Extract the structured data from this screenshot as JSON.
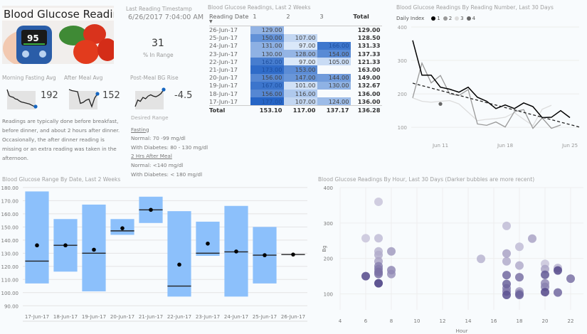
{
  "header": {
    "title": "Blood Glucose Readings",
    "last_reading_label": "Last Reading Timestamp",
    "last_reading_value": "6/26/2017 7:04:00 AM",
    "in_range_value": "31",
    "in_range_label": "% In Range"
  },
  "kpis": [
    {
      "label": "Morning Fasting Avg",
      "value": "192",
      "trend": [
        360,
        300,
        290,
        285,
        270,
        265,
        250,
        240,
        235,
        230,
        225,
        220,
        210,
        200,
        195
      ]
    },
    {
      "label": "After Meal Avg",
      "value": "152",
      "trend": [
        250,
        240,
        235,
        230,
        120,
        130,
        150,
        160,
        90,
        170,
        210
      ]
    },
    {
      "label": "Post-Meal BG Rise",
      "value": "-4.5",
      "trend": [
        -80,
        -30,
        -40,
        -10,
        -20,
        0,
        10,
        0,
        -5,
        5,
        20,
        50
      ]
    }
  ],
  "notes": {
    "description": [
      "Readings are typically done before breakfast,",
      "before dinner, and about 2 hours after dinner.",
      "Occasionally, the after dinner reading is",
      "missing or an extra reading was taken in the",
      "afternoon."
    ],
    "desired_range_title": "Desired Range",
    "fasting_label": "Fasting",
    "fasting_normal": "Normal: 70 -99 mg/dl",
    "fasting_diabetes": "With Diabetes: 80 - 130 mg/dl",
    "after_meal_label": "2 Hrs After Meal",
    "after_meal_normal": "Normal: <140 mg/dl",
    "after_meal_diabetes": "With Diabetes: < 180 mg/dl"
  },
  "matrix": {
    "title": "Blood Glucose Readings, Last 2 Weeks",
    "columns": [
      "Reading Date",
      "1",
      "2",
      "3",
      "Total"
    ],
    "rows": [
      {
        "date": "26-Jun-17",
        "v": [
          "129.00",
          "",
          ""
        ],
        "total": "129.00"
      },
      {
        "date": "25-Jun-17",
        "v": [
          "150.00",
          "107.00",
          ""
        ],
        "total": "128.50"
      },
      {
        "date": "24-Jun-17",
        "v": [
          "131.00",
          "97.00",
          "166.00"
        ],
        "total": "131.33"
      },
      {
        "date": "23-Jun-17",
        "v": [
          "130.00",
          "128.00",
          "154.00"
        ],
        "total": "137.33"
      },
      {
        "date": "22-Jun-17",
        "v": [
          "162.00",
          "97.00",
          "105.00"
        ],
        "total": "121.33"
      },
      {
        "date": "21-Jun-17",
        "v": [
          "173.00",
          "153.00",
          ""
        ],
        "total": "163.00"
      },
      {
        "date": "20-Jun-17",
        "v": [
          "156.00",
          "147.00",
          "144.00"
        ],
        "total": "149.00"
      },
      {
        "date": "19-Jun-17",
        "v": [
          "167.00",
          "101.00",
          "130.00"
        ],
        "total": "132.67"
      },
      {
        "date": "18-Jun-17",
        "v": [
          "156.00",
          "116.00",
          ""
        ],
        "total": "136.00"
      },
      {
        "date": "17-Jun-17",
        "v": [
          "177.00",
          "107.00",
          "124.00"
        ],
        "total": "136.00"
      }
    ],
    "total_row": {
      "label": "Total",
      "v": [
        "153.10",
        "117.00",
        "137.17"
      ],
      "total": "136.28"
    }
  },
  "chart_data": [
    {
      "type": "line",
      "title": "Blood Glucose Readings By Reading Number, Last 30 Days",
      "legend_title": "Daily Index",
      "legend_position": "top-left",
      "xlabel": "",
      "ylabel": "",
      "x_ticks": [
        "Jun 11",
        "Jun 18",
        "Jun 25"
      ],
      "y_ticks": [
        100,
        200,
        300,
        400
      ],
      "ylim": [
        60,
        400
      ],
      "x_days": [
        8,
        9,
        10,
        11,
        12,
        13,
        14,
        15,
        16,
        17,
        18,
        19,
        20,
        21,
        22,
        23,
        24,
        25,
        26
      ],
      "series": [
        {
          "name": "1",
          "color": "#000000",
          "values": [
            360,
            256,
            256,
            220,
            214,
            205,
            220,
            190,
            178,
            156,
            167,
            156,
            173,
            162,
            129,
            130,
            150,
            129,
            null
          ]
        },
        {
          "name": "2",
          "color": "#999999",
          "values": [
            188,
            292,
            233,
            255,
            200,
            195,
            213,
            110,
            106,
            116,
            101,
            147,
            153,
            97,
            128,
            97,
            107,
            null,
            null
          ]
        },
        {
          "name": "3",
          "color": "#dddddd",
          "values": [
            188,
            178,
            175,
            178,
            180,
            170,
            145,
            120,
            124,
            126,
            130,
            144,
            124,
            105,
            154,
            166,
            null,
            null,
            null
          ]
        },
        {
          "name": "4",
          "color": "#666666",
          "values": [
            null,
            null,
            null,
            170,
            null,
            null,
            null,
            null,
            null,
            null,
            null,
            null,
            null,
            null,
            null,
            null,
            null,
            null,
            null
          ]
        }
      ],
      "trendline": {
        "start": 232,
        "end": 101,
        "style": "dashed"
      }
    },
    {
      "type": "bar",
      "subtype": "range-box",
      "title": "Blood Glucose Range By Date, Last 2 Weeks",
      "categories": [
        "17-Jun-17",
        "18-Jun-17",
        "19-Jun-17",
        "20-Jun-17",
        "21-Jun-17",
        "22-Jun-17",
        "23-Jun-17",
        "24-Jun-17",
        "25-Jun-17",
        "26-Jun-17"
      ],
      "min": [
        107,
        116,
        101,
        144,
        153,
        97,
        128,
        97,
        107,
        129
      ],
      "max": [
        177,
        156,
        167,
        156,
        173,
        162,
        154,
        166,
        150,
        129
      ],
      "median": [
        124,
        136,
        130,
        147,
        163,
        105,
        130,
        131,
        128.5,
        129
      ],
      "mean": [
        136,
        136,
        132.67,
        149,
        163,
        121.33,
        137.33,
        131.33,
        128.5,
        129
      ],
      "y_ticks": [
        90,
        100,
        110,
        120,
        130,
        140,
        150,
        160,
        170,
        180
      ],
      "ylim": [
        88,
        181
      ],
      "bar_color": "#8cc0fb"
    },
    {
      "type": "scatter",
      "title": "Blood Glucose Readings By Hour, Last 30 Days (Darker bubbles are more recent)",
      "xlabel": "Hour",
      "ylabel": "Bg",
      "x_ticks": [
        4,
        6,
        8,
        10,
        12,
        14,
        16,
        18,
        20,
        22
      ],
      "y_ticks": [
        100,
        200,
        300,
        400
      ],
      "xlim": [
        4,
        23
      ],
      "ylim": [
        55,
        400
      ],
      "points": [
        {
          "x": 6,
          "y": 257,
          "recency": 0.1
        },
        {
          "x": 6,
          "y": 150,
          "recency": 0.85
        },
        {
          "x": 7,
          "y": 360,
          "recency": 0.1
        },
        {
          "x": 7,
          "y": 257,
          "recency": 0.15
        },
        {
          "x": 7,
          "y": 220,
          "recency": 0.2
        },
        {
          "x": 7,
          "y": 210,
          "recency": 0.25
        },
        {
          "x": 7,
          "y": 192,
          "recency": 0.3
        },
        {
          "x": 7,
          "y": 178,
          "recency": 0.5
        },
        {
          "x": 7,
          "y": 170,
          "recency": 0.55
        },
        {
          "x": 7,
          "y": 162,
          "recency": 0.6
        },
        {
          "x": 7,
          "y": 156,
          "recency": 0.6
        },
        {
          "x": 7,
          "y": 130,
          "recency": 0.95
        },
        {
          "x": 8,
          "y": 220,
          "recency": 0.35
        },
        {
          "x": 8,
          "y": 167,
          "recency": 0.45
        },
        {
          "x": 8,
          "y": 156,
          "recency": 0.4
        },
        {
          "x": 15,
          "y": 199,
          "recency": 0.2
        },
        {
          "x": 17,
          "y": 292,
          "recency": 0.15
        },
        {
          "x": 17,
          "y": 214,
          "recency": 0.3
        },
        {
          "x": 17,
          "y": 192,
          "recency": 0.25
        },
        {
          "x": 17,
          "y": 153,
          "recency": 0.65
        },
        {
          "x": 17,
          "y": 128,
          "recency": 0.7
        },
        {
          "x": 17,
          "y": 116,
          "recency": 0.5
        },
        {
          "x": 17,
          "y": 107,
          "recency": 0.55
        },
        {
          "x": 17,
          "y": 97,
          "recency": 0.8
        },
        {
          "x": 18,
          "y": 233,
          "recency": 0.15
        },
        {
          "x": 18,
          "y": 180,
          "recency": 0.25
        },
        {
          "x": 18,
          "y": 147,
          "recency": 0.6
        },
        {
          "x": 18,
          "y": 107,
          "recency": 0.35
        },
        {
          "x": 18,
          "y": 101,
          "recency": 0.5
        },
        {
          "x": 18,
          "y": 97,
          "recency": 0.7
        },
        {
          "x": 19,
          "y": 256,
          "recency": 0.3
        },
        {
          "x": 20,
          "y": 185,
          "recency": 0.1
        },
        {
          "x": 20,
          "y": 170,
          "recency": 0.3
        },
        {
          "x": 20,
          "y": 154,
          "recency": 0.75
        },
        {
          "x": 20,
          "y": 130,
          "recency": 0.45
        },
        {
          "x": 20,
          "y": 120,
          "recency": 0.5
        },
        {
          "x": 20,
          "y": 105,
          "recency": 0.85
        },
        {
          "x": 21,
          "y": 173,
          "recency": 0.2
        },
        {
          "x": 21,
          "y": 166,
          "recency": 0.85
        },
        {
          "x": 21,
          "y": 104,
          "recency": 0.65
        },
        {
          "x": 22,
          "y": 143,
          "recency": 0.6
        }
      ],
      "color_light": "#d9d5e6",
      "color_dark": "#3b2f7a"
    }
  ]
}
